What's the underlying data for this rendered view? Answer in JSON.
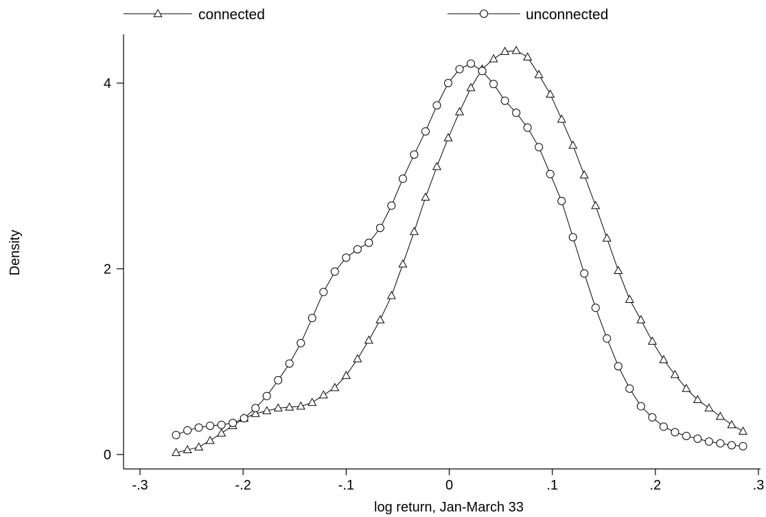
{
  "chart_data": {
    "type": "line",
    "title": "",
    "xlabel": "log return, Jan-March 33",
    "ylabel": "Density",
    "xlim": [
      -0.3,
      0.3
    ],
    "ylim": [
      0,
      4.4
    ],
    "x_ticks": [
      -0.3,
      -0.2,
      -0.1,
      0,
      0.1,
      0.2,
      0.3
    ],
    "x_tick_labels": [
      "-.3",
      "-.2",
      "-.1",
      "0",
      ".1",
      ".2",
      ".3"
    ],
    "y_ticks": [
      0,
      2,
      4
    ],
    "y_tick_labels": [
      "0",
      "2",
      "4"
    ],
    "grid": false,
    "legend_position": "top",
    "series": [
      {
        "name": "connected",
        "marker": "triangle",
        "x": [
          -0.265,
          -0.254,
          -0.243,
          -0.232,
          -0.221,
          -0.21,
          -0.199,
          -0.188,
          -0.177,
          -0.166,
          -0.155,
          -0.144,
          -0.133,
          -0.122,
          -0.111,
          -0.1,
          -0.089,
          -0.078,
          -0.067,
          -0.056,
          -0.045,
          -0.034,
          -0.023,
          -0.012,
          -0.001,
          0.01,
          0.021,
          0.032,
          0.043,
          0.054,
          0.065,
          0.076,
          0.087,
          0.098,
          0.109,
          0.12,
          0.131,
          0.142,
          0.153,
          0.164,
          0.175,
          0.186,
          0.197,
          0.208,
          0.219,
          0.23,
          0.241,
          0.252,
          0.263,
          0.274,
          0.285
        ],
        "y": [
          0.02,
          0.05,
          0.08,
          0.15,
          0.23,
          0.31,
          0.39,
          0.44,
          0.47,
          0.5,
          0.51,
          0.52,
          0.56,
          0.64,
          0.72,
          0.85,
          1.03,
          1.23,
          1.45,
          1.71,
          2.05,
          2.4,
          2.77,
          3.1,
          3.41,
          3.69,
          3.95,
          4.15,
          4.26,
          4.34,
          4.35,
          4.28,
          4.09,
          3.88,
          3.61,
          3.33,
          3.01,
          2.68,
          2.33,
          1.98,
          1.67,
          1.45,
          1.22,
          1.02,
          0.86,
          0.71,
          0.59,
          0.5,
          0.41,
          0.32,
          0.25
        ]
      },
      {
        "name": "unconnected",
        "marker": "circle",
        "x": [
          -0.265,
          -0.254,
          -0.243,
          -0.232,
          -0.221,
          -0.21,
          -0.199,
          -0.188,
          -0.177,
          -0.166,
          -0.155,
          -0.144,
          -0.133,
          -0.122,
          -0.111,
          -0.1,
          -0.089,
          -0.078,
          -0.067,
          -0.056,
          -0.045,
          -0.034,
          -0.023,
          -0.012,
          -0.001,
          0.01,
          0.021,
          0.032,
          0.043,
          0.054,
          0.065,
          0.076,
          0.087,
          0.098,
          0.109,
          0.12,
          0.131,
          0.142,
          0.153,
          0.164,
          0.175,
          0.186,
          0.197,
          0.208,
          0.219,
          0.23,
          0.241,
          0.252,
          0.263,
          0.274,
          0.285
        ],
        "y": [
          0.21,
          0.26,
          0.29,
          0.31,
          0.32,
          0.34,
          0.39,
          0.5,
          0.63,
          0.8,
          0.98,
          1.2,
          1.47,
          1.75,
          1.97,
          2.12,
          2.21,
          2.28,
          2.44,
          2.68,
          2.97,
          3.23,
          3.48,
          3.76,
          4.0,
          4.15,
          4.21,
          4.13,
          3.99,
          3.81,
          3.68,
          3.52,
          3.31,
          3.02,
          2.73,
          2.34,
          1.95,
          1.58,
          1.25,
          0.95,
          0.71,
          0.52,
          0.4,
          0.3,
          0.24,
          0.2,
          0.17,
          0.14,
          0.12,
          0.1,
          0.09
        ]
      }
    ]
  }
}
